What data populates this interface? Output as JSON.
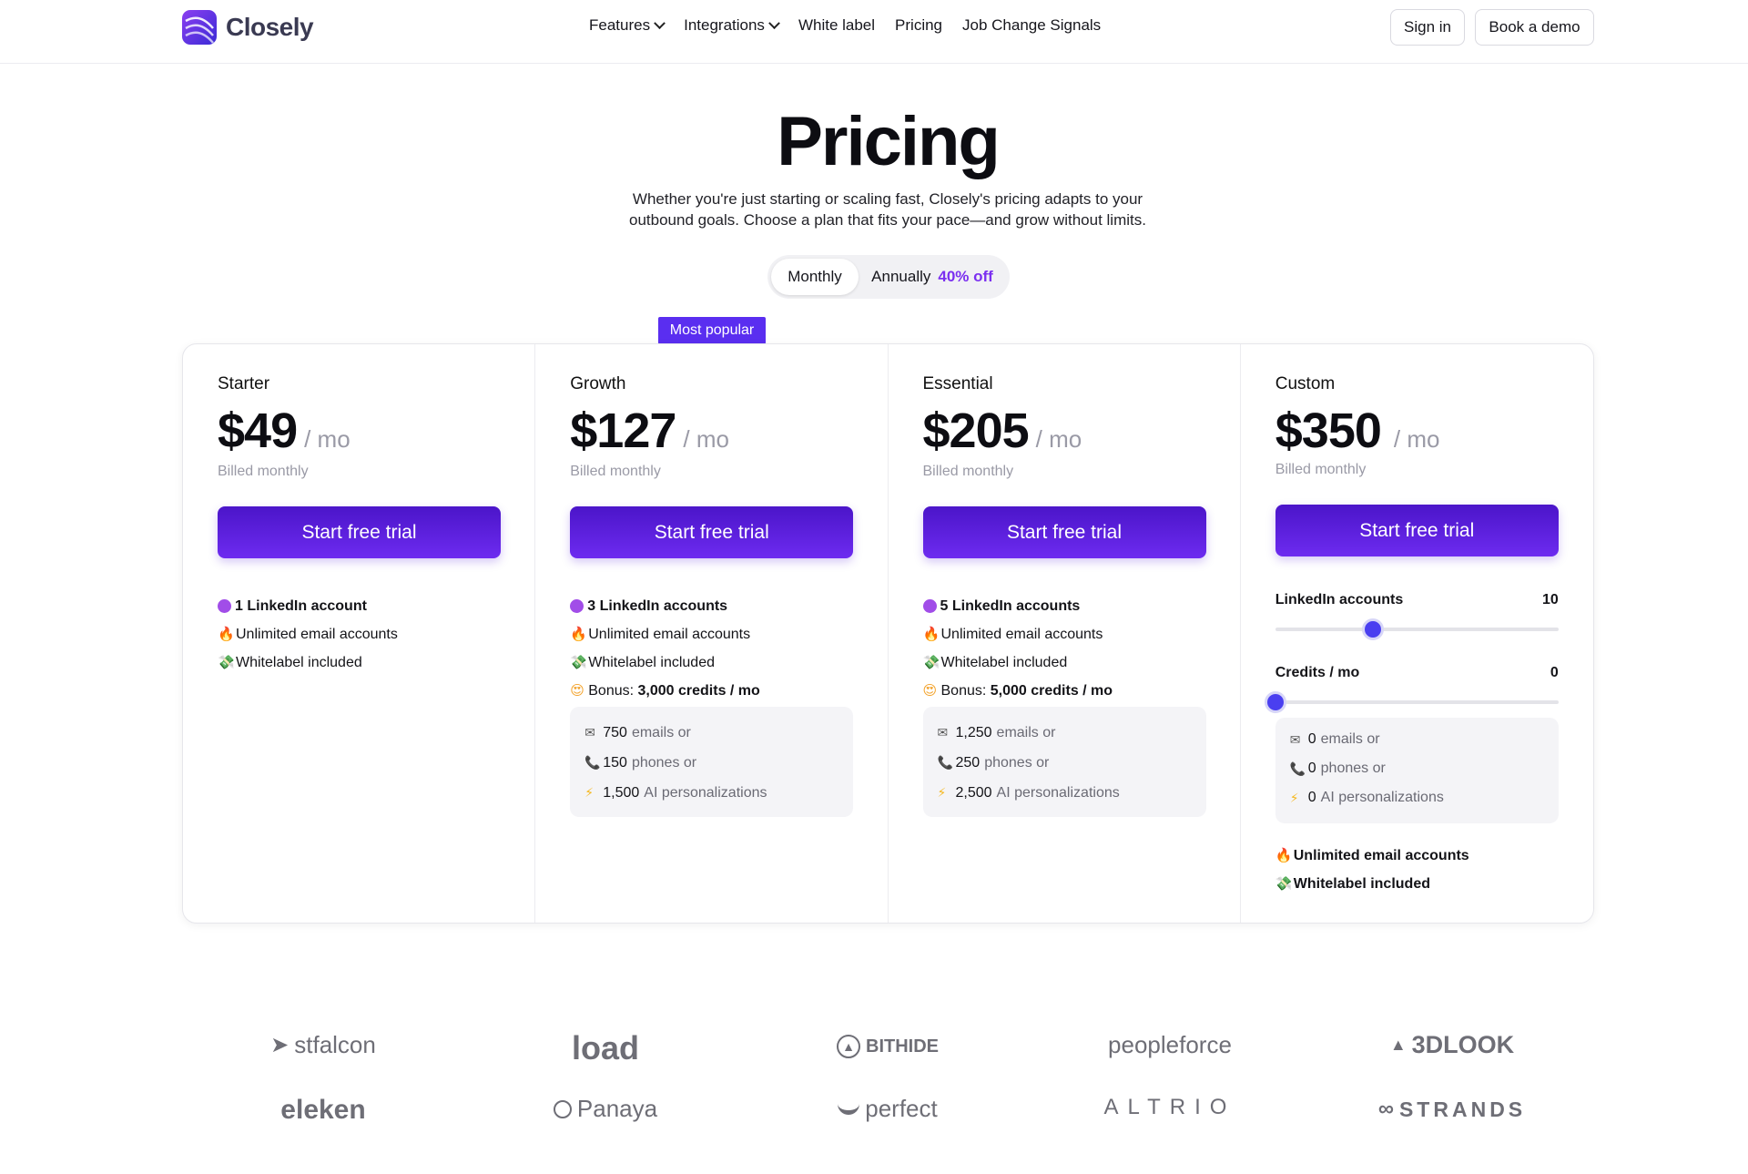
{
  "header": {
    "brand": "Closely",
    "nav": [
      {
        "label": "Features",
        "dropdown": true
      },
      {
        "label": "Integrations",
        "dropdown": true
      },
      {
        "label": "White label",
        "dropdown": false
      },
      {
        "label": "Pricing",
        "dropdown": false
      },
      {
        "label": "Job Change Signals",
        "dropdown": false
      }
    ],
    "sign_in": "Sign in",
    "book_demo": "Book a demo"
  },
  "hero": {
    "title": "Pricing",
    "subtitle_line1": "Whether you're just starting or scaling fast, Closely's pricing adapts to your",
    "subtitle_line2": "outbound goals. Choose a plan that fits your pace—and grow without limits."
  },
  "billing_toggle": {
    "monthly": "Monthly",
    "annually": "Annually",
    "discount": "40% off",
    "selected": "Monthly"
  },
  "badge": "Most popular",
  "plans": [
    {
      "name": "Starter",
      "price": "$49",
      "per": "/ mo",
      "billed": "Billed monthly",
      "cta": "Start free trial",
      "features": [
        "1 LinkedIn account",
        "Unlimited email accounts",
        "Whitelabel included"
      ]
    },
    {
      "name": "Growth",
      "price": "$127",
      "per": "/ mo",
      "billed": "Billed monthly",
      "cta": "Start free trial",
      "features": [
        "3 LinkedIn accounts",
        "Unlimited email accounts",
        "Whitelabel included"
      ],
      "bonus_label": "Bonus:",
      "bonus_value": "3,000 credits / mo",
      "credits": [
        {
          "value": "750",
          "text": "emails or"
        },
        {
          "value": "150",
          "text": "phones or"
        },
        {
          "value": "1,500",
          "text": "AI personalizations"
        }
      ]
    },
    {
      "name": "Essential",
      "price": "$205",
      "per": "/ mo",
      "billed": "Billed monthly",
      "cta": "Start free trial",
      "features": [
        "5 LinkedIn accounts",
        "Unlimited email accounts",
        "Whitelabel included"
      ],
      "bonus_label": "Bonus:",
      "bonus_value": "5,000 credits / mo",
      "credits": [
        {
          "value": "1,250",
          "text": "emails or"
        },
        {
          "value": "250",
          "text": "phones or"
        },
        {
          "value": "2,500",
          "text": "AI personalizations"
        }
      ]
    },
    {
      "name": "Custom",
      "price": "$350",
      "per": "/ mo",
      "billed": "Billed monthly",
      "cta": "Start free trial",
      "linkedin_label": "LinkedIn accounts",
      "linkedin_value": "10",
      "linkedin_fraction": 0.345,
      "credits_label": "Credits / mo",
      "credits_value": "0",
      "credits_fraction": 0.0,
      "credits": [
        {
          "value": "0",
          "text": "emails or"
        },
        {
          "value": "0",
          "text": "phones or"
        },
        {
          "value": "0",
          "text": "AI personalizations"
        }
      ],
      "features": [
        "Unlimited email accounts",
        "Whitelabel included"
      ]
    }
  ],
  "clients": [
    "stfalcon",
    "load",
    "BITHIDE",
    "peopleforce",
    "3DLOOK",
    "eleken",
    "Panaya",
    "perfect",
    "ALTRIO",
    "STRANDS"
  ]
}
